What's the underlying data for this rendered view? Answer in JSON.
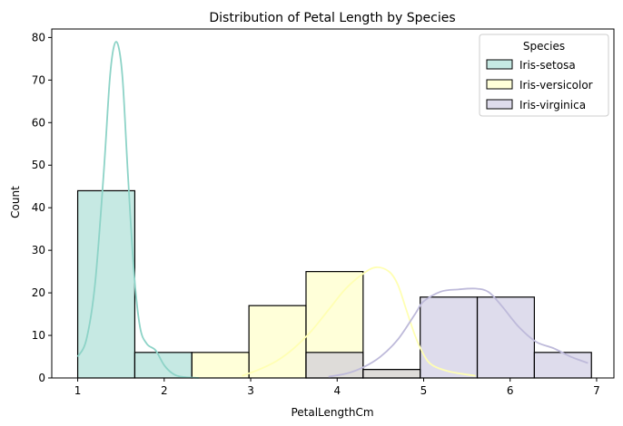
{
  "chart_data": {
    "type": "histogram",
    "title": "Distribution of Petal Length by Species",
    "xlabel": "PetalLengthCm",
    "ylabel": "Count",
    "xlim": [
      0.7,
      7.2
    ],
    "ylim": [
      0,
      82
    ],
    "xticks": [
      1,
      2,
      3,
      4,
      5,
      6,
      7
    ],
    "yticks": [
      0,
      10,
      20,
      30,
      40,
      50,
      60,
      70,
      80
    ],
    "grid": false,
    "legend": {
      "title": "Species",
      "placement": "top-right"
    },
    "bin_edges": [
      1.0,
      1.66,
      2.32,
      2.98,
      3.64,
      4.3,
      4.96,
      5.62,
      6.28,
      6.94
    ],
    "series": [
      {
        "name": "Iris-setosa",
        "color": "#8dd3c7",
        "counts": [
          44,
          6,
          0,
          0,
          0,
          0,
          0,
          0,
          0
        ],
        "kde": [
          [
            1.0,
            5
          ],
          [
            1.1,
            9
          ],
          [
            1.2,
            22
          ],
          [
            1.3,
            48
          ],
          [
            1.37,
            70
          ],
          [
            1.42,
            78
          ],
          [
            1.47,
            78
          ],
          [
            1.52,
            70
          ],
          [
            1.58,
            48
          ],
          [
            1.65,
            25
          ],
          [
            1.72,
            12
          ],
          [
            1.8,
            8
          ],
          [
            1.9,
            6.5
          ],
          [
            2.0,
            3
          ],
          [
            2.1,
            1
          ],
          [
            2.2,
            0.3
          ],
          [
            2.4,
            0
          ]
        ]
      },
      {
        "name": "Iris-versicolor",
        "color": "#ffffb3",
        "counts": [
          0,
          0,
          6,
          17,
          25,
          2,
          0,
          0,
          0
        ],
        "kde": [
          [
            2.9,
            0.5
          ],
          [
            3.1,
            2
          ],
          [
            3.3,
            4
          ],
          [
            3.5,
            7
          ],
          [
            3.7,
            11
          ],
          [
            3.9,
            16
          ],
          [
            4.1,
            21
          ],
          [
            4.3,
            24.5
          ],
          [
            4.45,
            26
          ],
          [
            4.6,
            25
          ],
          [
            4.7,
            22
          ],
          [
            4.8,
            16
          ],
          [
            4.9,
            10
          ],
          [
            5.0,
            5.5
          ],
          [
            5.1,
            3
          ],
          [
            5.3,
            1.5
          ],
          [
            5.6,
            0.5
          ]
        ]
      },
      {
        "name": "Iris-virginica",
        "color": "#bebada",
        "counts": [
          0,
          0,
          0,
          0,
          6,
          2,
          19,
          19,
          6
        ],
        "kde": [
          [
            3.9,
            0.3
          ],
          [
            4.1,
            1
          ],
          [
            4.3,
            2.5
          ],
          [
            4.5,
            5
          ],
          [
            4.7,
            9
          ],
          [
            4.9,
            15
          ],
          [
            5.0,
            18
          ],
          [
            5.2,
            20.3
          ],
          [
            5.4,
            20.8
          ],
          [
            5.6,
            21
          ],
          [
            5.75,
            20.2
          ],
          [
            5.9,
            17
          ],
          [
            6.1,
            12
          ],
          [
            6.3,
            8.5
          ],
          [
            6.5,
            7
          ],
          [
            6.7,
            5
          ],
          [
            6.9,
            3.5
          ]
        ]
      }
    ]
  }
}
